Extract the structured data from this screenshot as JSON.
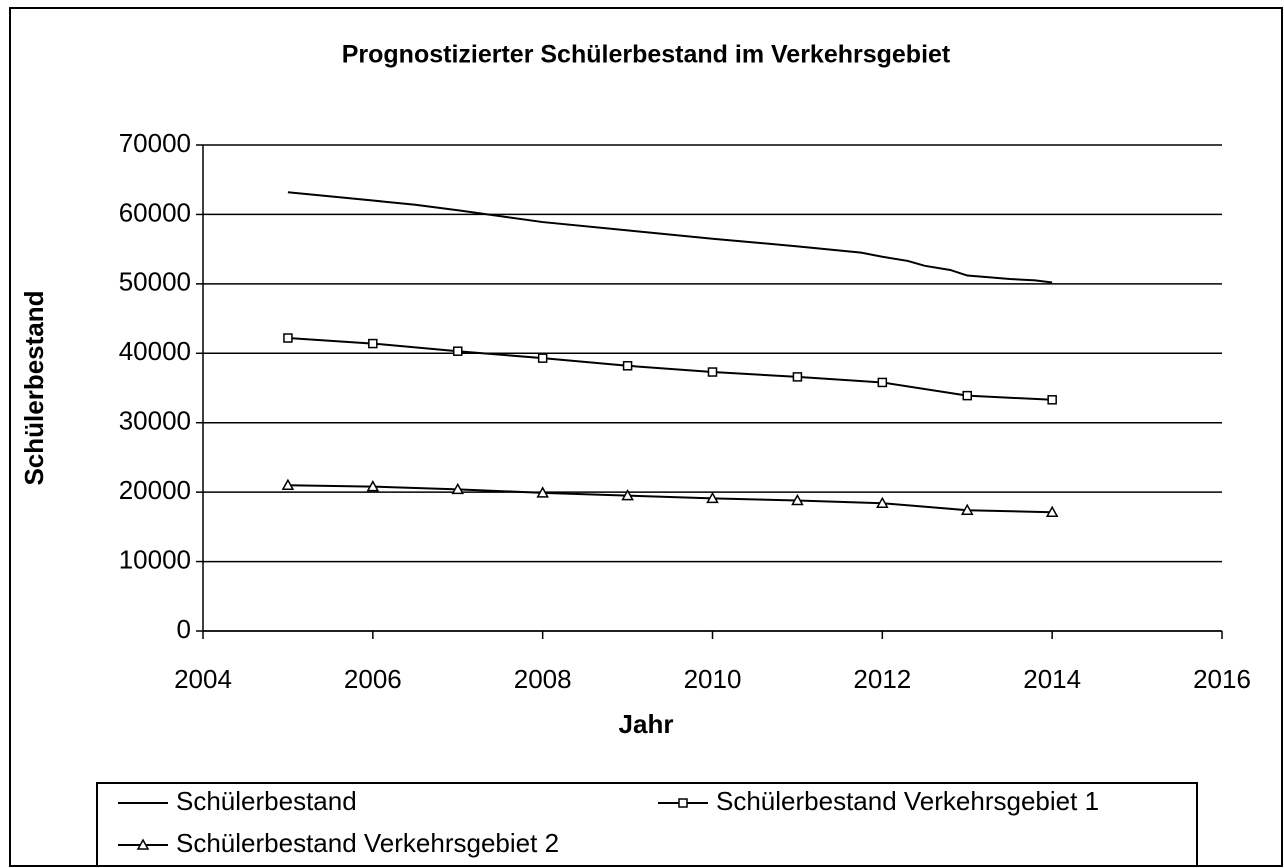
{
  "chart_data": {
    "type": "line",
    "title": "Prognostizierter Schülerbestand im Verkehrsgebiet",
    "x_label": "Jahr",
    "y_label": "Schülerbestand",
    "xlim": [
      2004,
      2016
    ],
    "xticks": [
      2004,
      2006,
      2008,
      2010,
      2012,
      2014,
      2016
    ],
    "ylim": [
      0,
      70000
    ],
    "yticks": [
      0,
      10000,
      20000,
      30000,
      40000,
      50000,
      60000,
      70000
    ],
    "grid": true,
    "legend": "bottom",
    "series": [
      {
        "name": "Schülerbestand",
        "color": "#000000",
        "marker": "none",
        "x": [
          2005,
          2006,
          2006.5,
          2007,
          2008,
          2009,
          2010,
          2011,
          2011.75,
          2012,
          2012.3,
          2012.5,
          2012.8,
          2013,
          2013.2,
          2013.5,
          2013.8,
          2014
        ],
        "values": [
          63200,
          62000,
          61400,
          60600,
          58900,
          57700,
          56500,
          55400,
          54500,
          53900,
          53300,
          52600,
          52000,
          51200,
          51000,
          50700,
          50500,
          50200
        ]
      },
      {
        "name": "Schülerbestand Verkehrsgebiet 1",
        "color": "#000000",
        "marker": "square",
        "x": [
          2005,
          2006,
          2007,
          2008,
          2009,
          2010,
          2011,
          2012,
          2013,
          2014
        ],
        "values": [
          42200,
          41400,
          40300,
          39300,
          38200,
          37300,
          36600,
          35800,
          33900,
          33300
        ]
      },
      {
        "name": "Schülerbestand Verkehrsgebiet 2",
        "color": "#000000",
        "marker": "triangle",
        "x": [
          2005,
          2006,
          2007,
          2008,
          2009,
          2010,
          2011,
          2012,
          2013,
          2014
        ],
        "values": [
          21000,
          20800,
          20400,
          19900,
          19500,
          19100,
          18800,
          18400,
          17400,
          17100
        ]
      }
    ]
  }
}
